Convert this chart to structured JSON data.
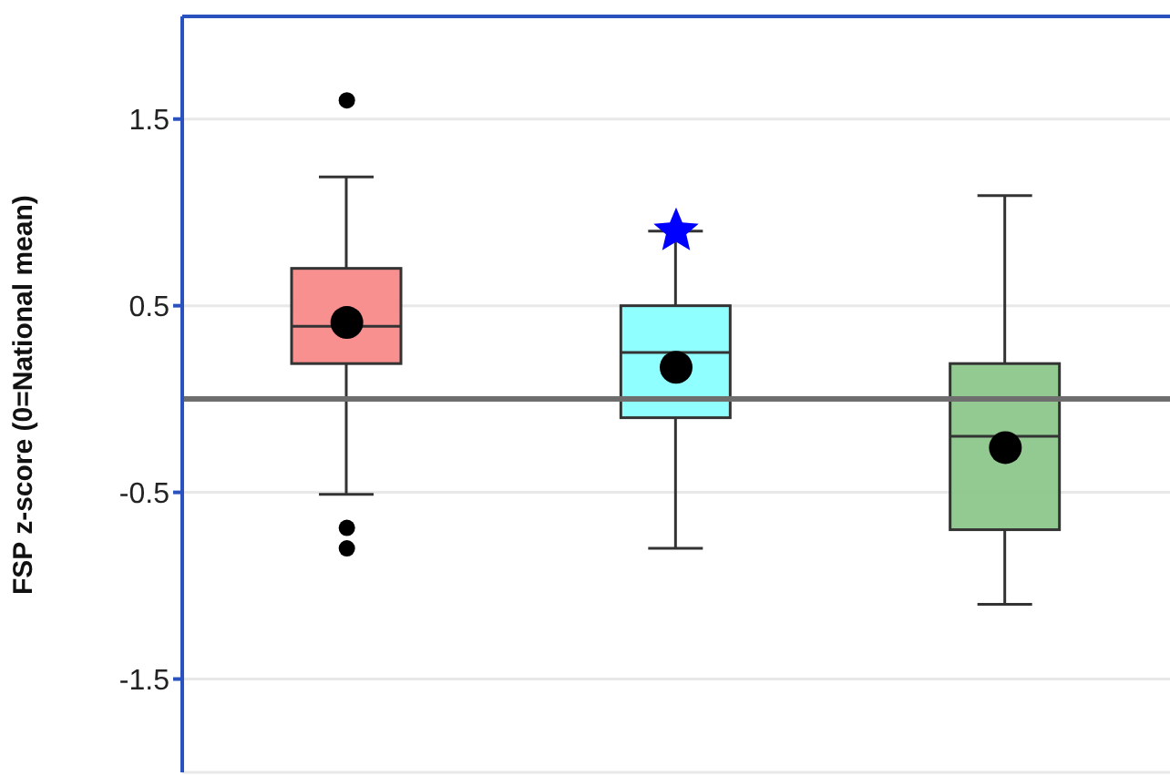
{
  "chart_data": {
    "type": "box",
    "ylabel": "FSP z-score (0=National mean)",
    "categories": [
      null,
      null,
      null
    ],
    "colors": [
      "#f88a8a",
      "#8affff",
      "#8cc78c"
    ],
    "boxes": [
      {
        "low": -0.51,
        "q1": 0.19,
        "median": 0.39,
        "q3": 0.7,
        "high": 1.19,
        "mean": 0.41,
        "outliers": [
          1.6,
          -0.69,
          -0.8
        ]
      },
      {
        "low": -0.8,
        "q1": -0.1,
        "median": 0.25,
        "q3": 0.5,
        "high": 0.9,
        "mean": 0.17
      },
      {
        "low": -1.1,
        "q1": -0.7,
        "median": -0.2,
        "q3": 0.19,
        "high": 1.09,
        "mean": -0.26
      }
    ],
    "series": [
      {
        "type": "scatter",
        "color": "#0000ff",
        "marker": "star",
        "values": [
          null,
          0.9,
          null
        ]
      }
    ],
    "ylim": [
      -2,
      2.05
    ],
    "yticks": [
      -1.5,
      -0.5,
      0.5,
      1.5
    ],
    "grid": "y",
    "tick_labels": "y",
    "ref_lines": [
      {
        "axis": "y",
        "value": 0,
        "color": "#6e6e6e"
      }
    ],
    "legend": false
  }
}
